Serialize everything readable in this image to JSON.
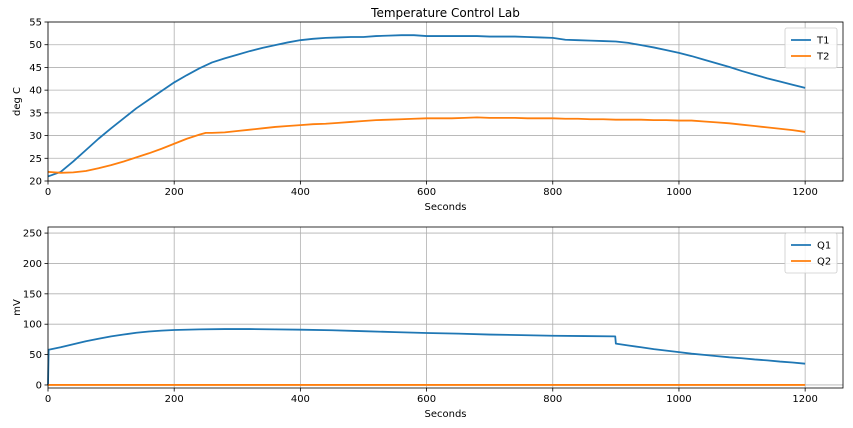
{
  "chart_data": [
    {
      "type": "line",
      "title": "Temperature Control Lab",
      "xlabel": "Seconds",
      "ylabel": "deg C",
      "xlim": [
        0,
        1260
      ],
      "ylim": [
        20,
        55
      ],
      "xticks": [
        0,
        200,
        400,
        600,
        800,
        1000,
        1200
      ],
      "yticks": [
        20,
        25,
        30,
        35,
        40,
        45,
        50,
        55
      ],
      "grid": true,
      "legend_position": "top-right",
      "series": [
        {
          "name": "T1",
          "color": "#1f77b4",
          "x": [
            0,
            20,
            40,
            60,
            80,
            100,
            120,
            140,
            160,
            180,
            200,
            220,
            240,
            260,
            280,
            300,
            320,
            340,
            360,
            380,
            400,
            420,
            440,
            460,
            480,
            500,
            520,
            540,
            560,
            580,
            600,
            620,
            640,
            660,
            680,
            700,
            720,
            740,
            760,
            780,
            800,
            820,
            840,
            860,
            880,
            900,
            920,
            940,
            960,
            980,
            1000,
            1020,
            1040,
            1060,
            1080,
            1100,
            1120,
            1140,
            1160,
            1180,
            1200
          ],
          "y": [
            21.0,
            22.0,
            24.3,
            26.8,
            29.3,
            31.6,
            33.8,
            36.0,
            37.9,
            39.8,
            41.7,
            43.3,
            44.8,
            46.1,
            47.0,
            47.8,
            48.6,
            49.3,
            49.9,
            50.5,
            51.0,
            51.3,
            51.5,
            51.6,
            51.7,
            51.7,
            51.9,
            52.0,
            52.1,
            52.1,
            51.9,
            51.9,
            51.9,
            51.9,
            51.9,
            51.8,
            51.8,
            51.8,
            51.7,
            51.6,
            51.5,
            51.1,
            51.0,
            50.9,
            50.8,
            50.7,
            50.4,
            49.9,
            49.4,
            48.8,
            48.2,
            47.5,
            46.7,
            45.9,
            45.1,
            44.2,
            43.4,
            42.6,
            41.9,
            41.2,
            40.5
          ]
        },
        {
          "name": "T2",
          "color": "#ff7f0e",
          "x": [
            0,
            20,
            40,
            60,
            80,
            100,
            120,
            140,
            160,
            180,
            200,
            220,
            240,
            250,
            260,
            280,
            300,
            320,
            340,
            360,
            380,
            400,
            420,
            440,
            460,
            480,
            500,
            520,
            540,
            560,
            580,
            600,
            620,
            640,
            660,
            680,
            700,
            720,
            740,
            760,
            780,
            800,
            820,
            840,
            860,
            880,
            900,
            920,
            940,
            960,
            980,
            1000,
            1020,
            1040,
            1060,
            1080,
            1100,
            1120,
            1140,
            1160,
            1180,
            1200
          ],
          "y": [
            22.0,
            21.8,
            21.9,
            22.2,
            22.8,
            23.5,
            24.3,
            25.2,
            26.1,
            27.1,
            28.2,
            29.3,
            30.2,
            30.6,
            30.6,
            30.7,
            31.0,
            31.3,
            31.6,
            31.9,
            32.1,
            32.3,
            32.5,
            32.6,
            32.8,
            33.0,
            33.2,
            33.4,
            33.5,
            33.6,
            33.7,
            33.8,
            33.8,
            33.8,
            33.9,
            34.0,
            33.9,
            33.9,
            33.9,
            33.8,
            33.8,
            33.8,
            33.7,
            33.7,
            33.6,
            33.6,
            33.5,
            33.5,
            33.5,
            33.4,
            33.4,
            33.3,
            33.3,
            33.1,
            32.9,
            32.7,
            32.4,
            32.1,
            31.8,
            31.5,
            31.2,
            30.8
          ]
        }
      ]
    },
    {
      "type": "line",
      "title": "",
      "xlabel": "Seconds",
      "ylabel": "mV",
      "xlim": [
        0,
        1260
      ],
      "ylim": [
        -5,
        260
      ],
      "xticks": [
        0,
        200,
        400,
        600,
        800,
        1000,
        1200
      ],
      "yticks": [
        0,
        50,
        100,
        150,
        200,
        250
      ],
      "grid": true,
      "legend_position": "top-right",
      "series": [
        {
          "name": "Q1",
          "color": "#1f77b4",
          "x": [
            0,
            1,
            20,
            40,
            60,
            80,
            100,
            120,
            140,
            160,
            180,
            200,
            240,
            280,
            320,
            360,
            400,
            450,
            500,
            550,
            600,
            650,
            700,
            750,
            800,
            850,
            899,
            900,
            920,
            940,
            960,
            980,
            1000,
            1020,
            1040,
            1060,
            1080,
            1100,
            1120,
            1140,
            1160,
            1180,
            1200
          ],
          "y": [
            0,
            58,
            62,
            67,
            72,
            76,
            80,
            83,
            86,
            88,
            89.5,
            90.5,
            91.5,
            92,
            92,
            91.5,
            91,
            90,
            88.5,
            87,
            85.5,
            84.5,
            83,
            82,
            81,
            80.5,
            80,
            68,
            65,
            62,
            59,
            56.5,
            54,
            51.5,
            49.5,
            47.5,
            45.5,
            44,
            42,
            40.5,
            38.5,
            37,
            35
          ]
        },
        {
          "name": "Q2",
          "color": "#ff7f0e",
          "x": [
            0,
            1200
          ],
          "y": [
            0,
            0
          ]
        }
      ]
    }
  ]
}
